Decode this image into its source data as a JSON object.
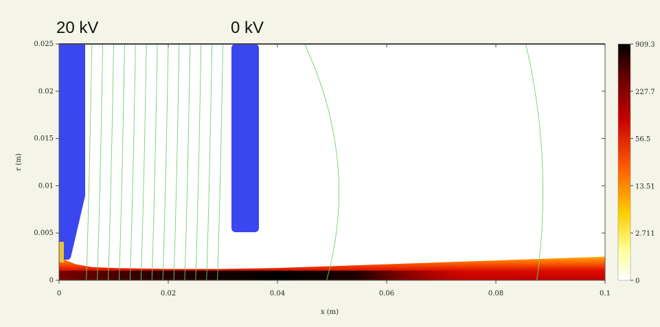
{
  "annotations": {
    "left_electrode_voltage": "20 kV",
    "right_electrode_voltage": "0 kV"
  },
  "colors": {
    "electrode": "#3a46f0",
    "field_lines": "#6fd06f",
    "background": "#f4f5e8",
    "plot_bg": "#ffffff"
  },
  "chart_data": {
    "type": "heatmap",
    "title": "",
    "xlabel": "x (m)",
    "ylabel": "r (m)",
    "xlim": [
      0,
      0.1
    ],
    "ylim": [
      0,
      0.025
    ],
    "xticks": [
      "0",
      "0.02",
      "0.04",
      "0.06",
      "0.08",
      "0.1"
    ],
    "yticks": [
      "0",
      "0.005",
      "0.01",
      "0.015",
      "0.02",
      "0.025"
    ],
    "colorbar": {
      "labels": [
        "909.3",
        "227.7",
        "56.5",
        "13.51",
        "2.711",
        "0"
      ],
      "colors": [
        "#000000",
        "#5a0000",
        "#c80000",
        "#ff5a00",
        "#ffd000",
        "#ffff99",
        "#ffffff"
      ],
      "scale": "log"
    },
    "electrodes": [
      {
        "name": "20 kV",
        "x_range": [
          0,
          0.005
        ],
        "r_range": [
          0,
          0.025
        ]
      },
      {
        "name": "0 kV",
        "x_range": [
          0.032,
          0.037
        ],
        "r_range": [
          0.005,
          0.025
        ]
      }
    ],
    "beam_envelope": {
      "x": [
        0.001,
        0.003,
        0.006,
        0.01,
        0.02,
        0.03,
        0.04,
        0.06,
        0.08,
        0.1
      ],
      "r_top": [
        0.0022,
        0.0017,
        0.0014,
        0.0013,
        0.0012,
        0.0012,
        0.0013,
        0.0017,
        0.0021,
        0.0025
      ]
    },
    "equipotential_lines_x": [
      0.006,
      0.008,
      0.01,
      0.012,
      0.014,
      0.016,
      0.018,
      0.02,
      0.022,
      0.024,
      0.026,
      0.028,
      0.03,
      0.05,
      0.088
    ],
    "grid": false,
    "legend": "colorbar-right"
  }
}
